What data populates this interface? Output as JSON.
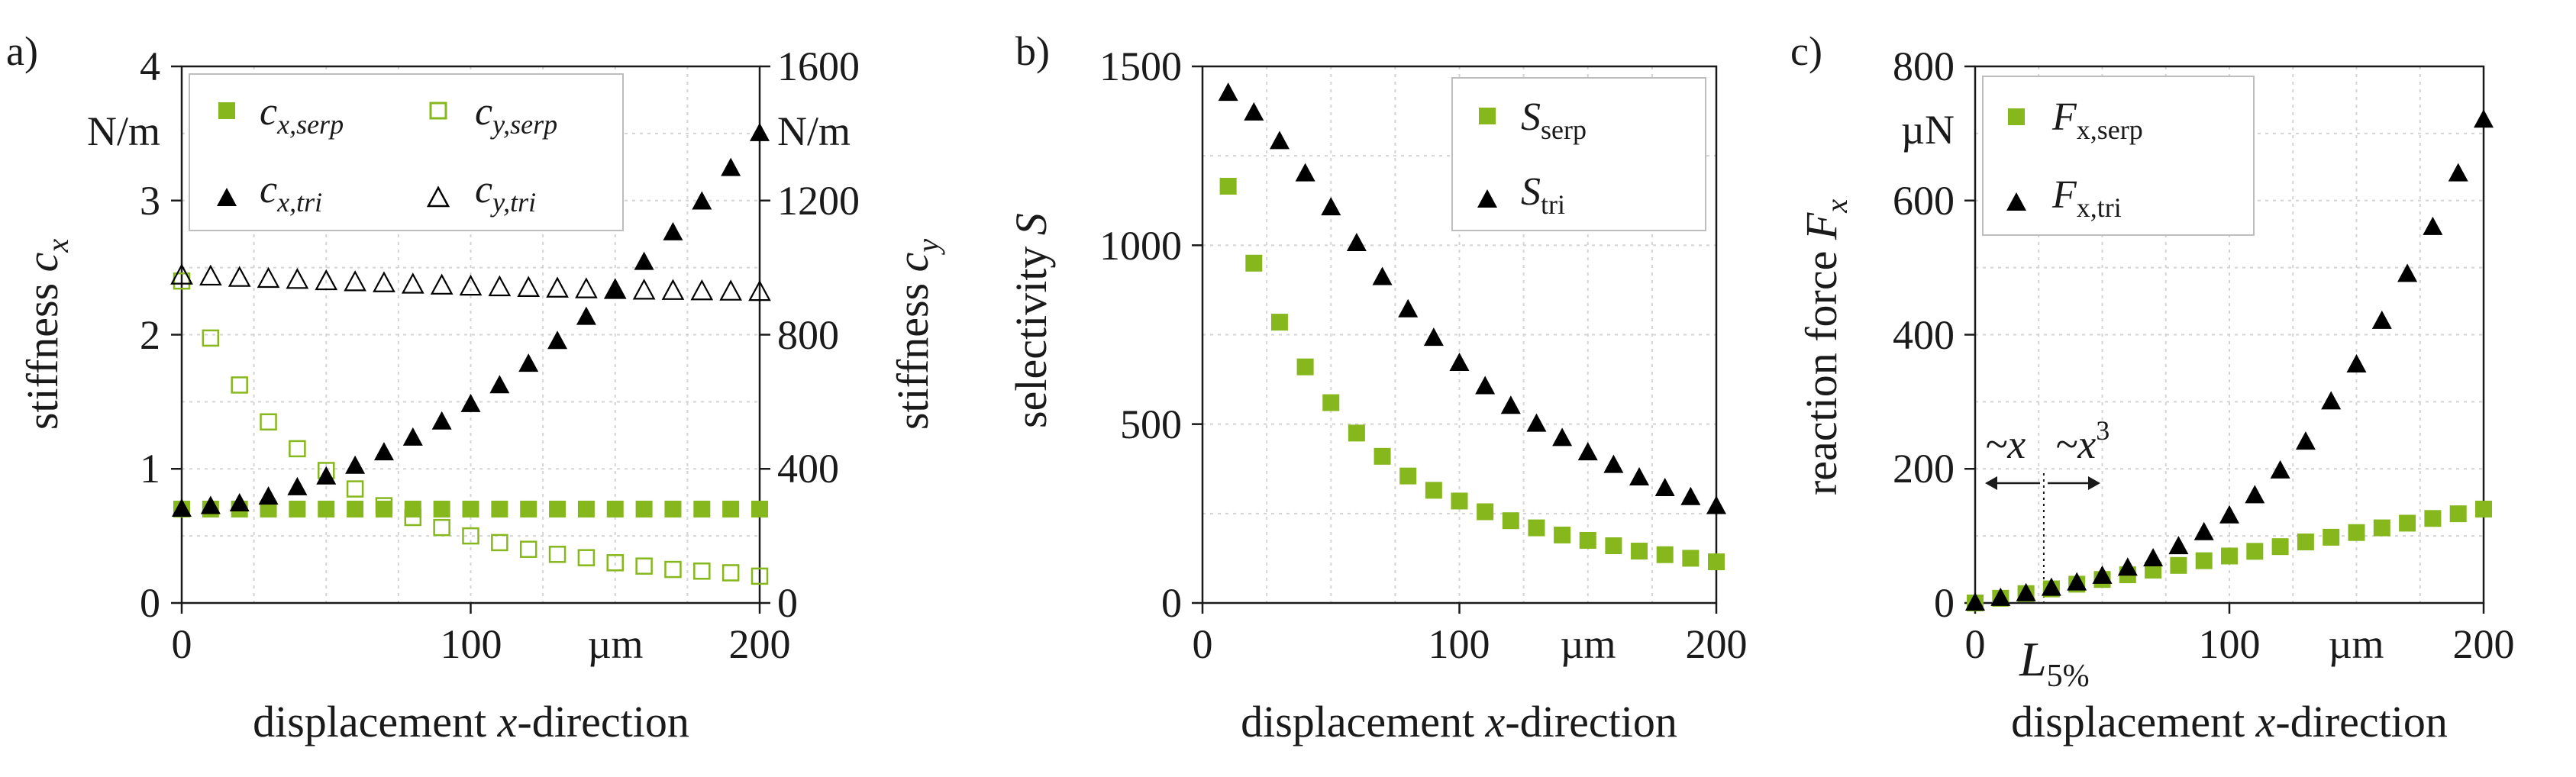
{
  "colors": {
    "green": "#86b81d",
    "black": "#000000",
    "grid": "#d4d4d4",
    "text": "#1a1a1a"
  },
  "chart_data": [
    {
      "type": "scatter",
      "panel_label": "a)",
      "xlabel_pre": "displacement ",
      "xlabel_var": "x",
      "xlabel_post": "-direction",
      "ylabel_left_pre": "stiffness ",
      "ylabel_left_var": "c",
      "ylabel_left_sub": "x",
      "ylabel_right_pre": "stiffness ",
      "ylabel_right_var": "c",
      "ylabel_right_sub": "y",
      "x_unit": "µm",
      "left_unit": "N/m",
      "right_unit": "N/m",
      "xlim": [
        0,
        200
      ],
      "ylim_left": [
        0,
        4
      ],
      "ylim_right": [
        0,
        1600
      ],
      "x_ticks": [
        "0",
        "100",
        "200"
      ],
      "left_ticks": [
        "0",
        "1",
        "2",
        "3",
        "4"
      ],
      "right_ticks": [
        "0",
        "400",
        "800",
        "1200",
        "1600"
      ],
      "legend": [
        {
          "symbol": "c",
          "sub": "x,serp",
          "marker": "square-filled",
          "color": "#86b81d"
        },
        {
          "symbol": "c",
          "sub": "y,serp",
          "marker": "square-open",
          "color": "#86b81d"
        },
        {
          "symbol": "c",
          "sub": "x,tri",
          "marker": "triangle-filled",
          "color": "#000000"
        },
        {
          "symbol": "c",
          "sub": "y,tri",
          "marker": "triangle-open",
          "color": "#000000"
        }
      ],
      "series": [
        {
          "name": "c_x,serp",
          "axis": "left",
          "marker": "square-filled",
          "color": "#86b81d",
          "x": [
            0,
            10,
            20,
            30,
            40,
            50,
            60,
            70,
            80,
            90,
            100,
            110,
            120,
            130,
            140,
            150,
            160,
            170,
            180,
            190,
            200
          ],
          "y": [
            0.7,
            0.7,
            0.7,
            0.7,
            0.7,
            0.7,
            0.7,
            0.7,
            0.7,
            0.7,
            0.7,
            0.7,
            0.7,
            0.7,
            0.7,
            0.7,
            0.7,
            0.7,
            0.7,
            0.7,
            0.7
          ]
        },
        {
          "name": "c_y,serp",
          "axis": "right",
          "marker": "square-open",
          "color": "#86b81d",
          "x": [
            0,
            10,
            20,
            30,
            40,
            50,
            60,
            70,
            80,
            90,
            100,
            110,
            120,
            130,
            140,
            150,
            160,
            170,
            180,
            190,
            200
          ],
          "y": [
            960,
            790,
            650,
            540,
            460,
            395,
            340,
            290,
            255,
            225,
            200,
            180,
            160,
            145,
            135,
            120,
            110,
            100,
            95,
            90,
            80
          ]
        },
        {
          "name": "c_x,tri",
          "axis": "left",
          "marker": "triangle-filled",
          "color": "#000000",
          "x": [
            0,
            10,
            20,
            30,
            40,
            50,
            60,
            70,
            80,
            90,
            100,
            110,
            120,
            130,
            140,
            150,
            160,
            170,
            180,
            190,
            200
          ],
          "y": [
            0.7,
            0.72,
            0.74,
            0.79,
            0.86,
            0.94,
            1.02,
            1.12,
            1.23,
            1.35,
            1.48,
            1.62,
            1.78,
            1.95,
            2.13,
            2.33,
            2.54,
            2.76,
            2.99,
            3.24,
            3.5
          ]
        },
        {
          "name": "c_y,tri",
          "axis": "right",
          "marker": "triangle-open",
          "color": "#000000",
          "x": [
            0,
            10,
            20,
            30,
            40,
            50,
            60,
            70,
            80,
            90,
            100,
            110,
            120,
            130,
            140,
            150,
            160,
            170,
            180,
            190,
            200
          ],
          "y": [
            975,
            972,
            968,
            965,
            962,
            958,
            955,
            952,
            948,
            945,
            942,
            940,
            938,
            936,
            934,
            932,
            930,
            929,
            928,
            927,
            926
          ]
        }
      ]
    },
    {
      "type": "scatter",
      "panel_label": "b)",
      "xlabel_pre": "displacement ",
      "xlabel_var": "x",
      "xlabel_post": "-direction",
      "ylabel_pre": "selectivity ",
      "ylabel_var": "S",
      "x_unit": "µm",
      "xlim": [
        0,
        200
      ],
      "ylim": [
        0,
        1500
      ],
      "x_ticks": [
        "0",
        "100",
        "200"
      ],
      "y_ticks": [
        "0",
        "500",
        "1000",
        "1500"
      ],
      "legend": [
        {
          "symbol": "S",
          "sub": "serp",
          "marker": "square-filled",
          "color": "#86b81d"
        },
        {
          "symbol": "S",
          "sub": "tri",
          "marker": "triangle-filled",
          "color": "#000000"
        }
      ],
      "series": [
        {
          "name": "S_serp",
          "marker": "square-filled",
          "color": "#86b81d",
          "x": [
            10,
            20,
            30,
            40,
            50,
            60,
            70,
            80,
            90,
            100,
            110,
            120,
            130,
            140,
            150,
            160,
            170,
            180,
            190,
            200
          ],
          "y": [
            1165,
            950,
            785,
            660,
            560,
            475,
            410,
            355,
            315,
            285,
            255,
            230,
            210,
            190,
            175,
            160,
            145,
            135,
            125,
            115
          ]
        },
        {
          "name": "S_tri",
          "marker": "triangle-filled",
          "color": "#000000",
          "x": [
            10,
            20,
            30,
            40,
            50,
            60,
            70,
            80,
            90,
            100,
            110,
            120,
            130,
            140,
            150,
            160,
            170,
            180,
            190,
            200
          ],
          "y": [
            1425,
            1370,
            1290,
            1200,
            1105,
            1005,
            910,
            820,
            740,
            670,
            605,
            550,
            500,
            460,
            420,
            385,
            350,
            320,
            295,
            270
          ]
        }
      ]
    },
    {
      "type": "scatter",
      "panel_label": "c)",
      "xlabel_pre": "displacement ",
      "xlabel_var": "x",
      "xlabel_post": "-direction",
      "ylabel_pre": "reaction force ",
      "ylabel_var": "F",
      "ylabel_sub": "x",
      "x_unit": "µm",
      "y_unit": "µN",
      "xlim": [
        0,
        200
      ],
      "ylim": [
        0,
        800
      ],
      "x_ticks": [
        "0",
        "100",
        "200"
      ],
      "y_ticks": [
        "0",
        "200",
        "400",
        "600",
        "800"
      ],
      "legend": [
        {
          "symbol": "F",
          "sub": "x,serp",
          "marker": "square-filled",
          "color": "#86b81d"
        },
        {
          "symbol": "F",
          "sub": "x,tri",
          "marker": "triangle-filled",
          "color": "#000000"
        }
      ],
      "annotations": {
        "linear": "~x",
        "cubic_base": "~x",
        "cubic_exp": "3",
        "threshold_var": "L",
        "threshold_sub": "5%",
        "threshold_x": 27
      },
      "series": [
        {
          "name": "F_x,serp",
          "marker": "square-filled",
          "color": "#86b81d",
          "x": [
            0,
            10,
            20,
            30,
            40,
            50,
            60,
            70,
            80,
            90,
            100,
            110,
            120,
            130,
            140,
            150,
            160,
            170,
            180,
            190,
            200
          ],
          "y": [
            0,
            7,
            14,
            21,
            28,
            35,
            42,
            49,
            56,
            63,
            70,
            77,
            84,
            91,
            98,
            105,
            112,
            119,
            126,
            133,
            140
          ]
        },
        {
          "name": "F_x,tri",
          "marker": "triangle-filled",
          "color": "#000000",
          "x": [
            0,
            10,
            20,
            30,
            40,
            50,
            60,
            70,
            80,
            90,
            100,
            110,
            120,
            130,
            140,
            150,
            160,
            170,
            180,
            190,
            200
          ],
          "y": [
            0,
            7,
            14,
            22,
            30,
            40,
            52,
            66,
            84,
            105,
            130,
            160,
            197,
            240,
            300,
            355,
            420,
            490,
            560,
            640,
            720
          ]
        }
      ]
    }
  ]
}
